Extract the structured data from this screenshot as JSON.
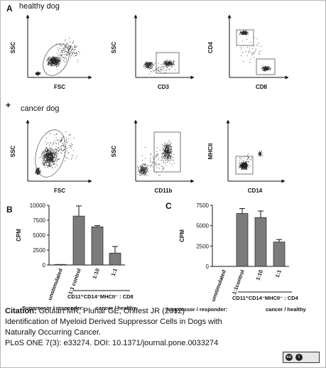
{
  "panel_a": {
    "label": "A",
    "healthy_label": "healthy dog",
    "plus_symbol": "+",
    "cancer_label": "cancer dog",
    "plots": [
      {
        "xlabel": "FSC",
        "ylabel": "SSC"
      },
      {
        "xlabel": "CD3",
        "ylabel": "SSC"
      },
      {
        "xlabel": "CD8",
        "ylabel": "CD4"
      },
      {
        "xlabel": "FSC",
        "ylabel": "SSC"
      },
      {
        "xlabel": "CD11b",
        "ylabel": "SSC"
      },
      {
        "xlabel": "CD14",
        "ylabel": "MHCII"
      }
    ]
  },
  "chart_data": [
    {
      "type": "bar",
      "panel": "B",
      "ylabel": "CPM",
      "ylim": [
        0,
        10000
      ],
      "yticks": [
        "0",
        "2500",
        "5000",
        "7500",
        "10000"
      ],
      "categories": [
        "unstimulated",
        "1:1 control",
        "1:10",
        "1:1"
      ],
      "values": [
        100,
        8200,
        6400,
        2000
      ],
      "errors": [
        0,
        1700,
        200,
        1100
      ],
      "group_label": "CD11⁺CD14⁻MHCII⁻ : CD8",
      "suppressor_label": "Suppressor / responder:",
      "suppressor_value": "cancer / healthy"
    },
    {
      "type": "bar",
      "panel": "C",
      "ylabel": "CPM",
      "ylim": [
        0,
        7500
      ],
      "yticks": [
        "0",
        "2500",
        "5000",
        "7500"
      ],
      "categories": [
        "unstimulated",
        "1:1control",
        "1:10",
        "1:1"
      ],
      "values": [
        0,
        6500,
        6000,
        3000
      ],
      "errors": [
        0,
        600,
        800,
        300
      ],
      "group_label": "CD11⁺CD14⁻MHCII⁻ : CD4",
      "suppressor_label": "Suppressor / responder:",
      "suppressor_value": "cancer / healthy"
    }
  ],
  "citation": {
    "prefix": "Citation:",
    "authors": "Goulart MR, Pluhar GE, Ohlfest JR (2012)",
    "title_line1": "Identification of Myeloid Derived Suppressor Cells in Dogs with",
    "title_line2": "Naturally Occurring Cancer.",
    "journal": "PLoS ONE 7(3): e33274. DOI: 10.1371/journal.pone.0033274"
  },
  "license_icon": "cc-by-icon"
}
